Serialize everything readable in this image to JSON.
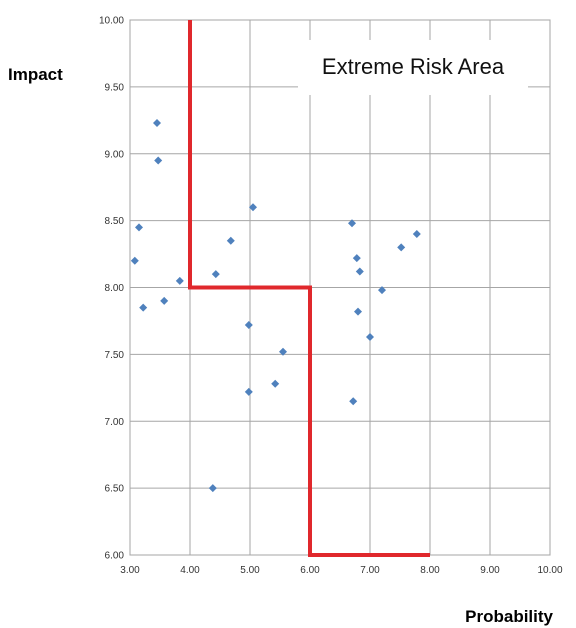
{
  "chart_data": {
    "type": "scatter",
    "xlabel": "Probability",
    "ylabel": "Impact",
    "xlim": [
      3.0,
      10.0
    ],
    "ylim": [
      6.0,
      10.0
    ],
    "x_ticks": [
      "3.00",
      "4.00",
      "5.00",
      "6.00",
      "7.00",
      "8.00",
      "9.00",
      "10.00"
    ],
    "y_ticks": [
      "6.00",
      "6.50",
      "7.00",
      "7.50",
      "8.00",
      "8.50",
      "9.00",
      "9.50",
      "10.00"
    ],
    "grid": true,
    "marker_color": "#4F81BD",
    "boundary_color": "#E0282C",
    "annotation": "Extreme Risk Area",
    "points": [
      {
        "x": 3.45,
        "y": 9.23
      },
      {
        "x": 3.47,
        "y": 8.95
      },
      {
        "x": 3.15,
        "y": 8.45
      },
      {
        "x": 3.08,
        "y": 8.2
      },
      {
        "x": 3.22,
        "y": 7.85
      },
      {
        "x": 3.57,
        "y": 7.9
      },
      {
        "x": 3.83,
        "y": 8.05
      },
      {
        "x": 4.43,
        "y": 8.1
      },
      {
        "x": 4.68,
        "y": 8.35
      },
      {
        "x": 5.05,
        "y": 8.6
      },
      {
        "x": 4.98,
        "y": 7.72
      },
      {
        "x": 5.55,
        "y": 7.52
      },
      {
        "x": 4.98,
        "y": 7.22
      },
      {
        "x": 5.42,
        "y": 7.28
      },
      {
        "x": 4.38,
        "y": 6.5
      },
      {
        "x": 6.7,
        "y": 8.48
      },
      {
        "x": 6.78,
        "y": 8.22
      },
      {
        "x": 6.83,
        "y": 8.12
      },
      {
        "x": 7.2,
        "y": 7.98
      },
      {
        "x": 7.52,
        "y": 8.3
      },
      {
        "x": 7.78,
        "y": 8.4
      },
      {
        "x": 6.8,
        "y": 7.82
      },
      {
        "x": 7.0,
        "y": 7.63
      },
      {
        "x": 6.72,
        "y": 7.15
      }
    ],
    "boundary": [
      {
        "x": 4.0,
        "y": 10.0
      },
      {
        "x": 4.0,
        "y": 8.0
      },
      {
        "x": 6.0,
        "y": 8.0
      },
      {
        "x": 6.0,
        "y": 6.0
      },
      {
        "x": 8.0,
        "y": 6.0
      }
    ]
  }
}
